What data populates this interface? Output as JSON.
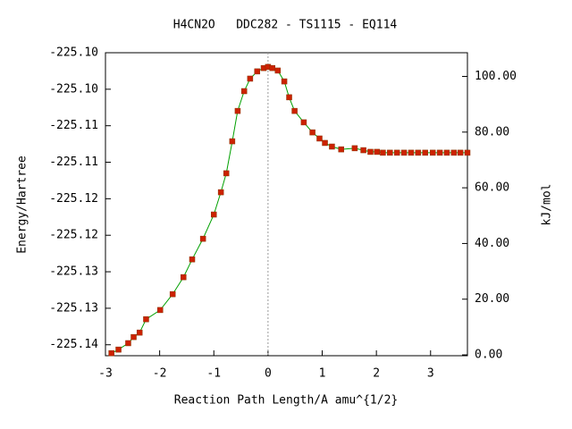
{
  "chart_data": {
    "type": "line",
    "title": "H4CN2O   DDC282 - TS1115 - EQ114",
    "xlabel": "Reaction Path Length/A amu^{1/2}",
    "ylabel": "Energy/Hartree",
    "y2label": "kJ/mol",
    "x": [
      -2.89,
      -2.76,
      -2.58,
      -2.48,
      -2.37,
      -2.25,
      -1.99,
      -1.76,
      -1.56,
      -1.4,
      -1.2,
      -1.0,
      -0.87,
      -0.77,
      -0.66,
      -0.56,
      -0.44,
      -0.33,
      -0.2,
      -0.08,
      0,
      0.08,
      0.18,
      0.3,
      0.39,
      0.49,
      0.66,
      0.82,
      0.95,
      1.05,
      1.18,
      1.35,
      1.6,
      1.76,
      1.89,
      2.01,
      2.12,
      2.25,
      2.38,
      2.51,
      2.64,
      2.77,
      2.9,
      3.04,
      3.17,
      3.3,
      3.43,
      3.55,
      3.68
    ],
    "values": [
      0.6,
      1.9,
      4.2,
      6.4,
      8.0,
      12.8,
      16.1,
      21.8,
      27.9,
      34.3,
      41.7,
      50.4,
      58.4,
      65.2,
      76.7,
      87.6,
      94.7,
      99.2,
      101.8,
      103.0,
      103.4,
      103.0,
      102.1,
      98.2,
      92.5,
      87.6,
      83.5,
      79.9,
      77.7,
      76.1,
      74.8,
      73.8,
      74.2,
      73.5,
      72.9,
      72.9,
      72.6,
      72.6,
      72.6,
      72.6,
      72.6,
      72.6,
      72.6,
      72.6,
      72.6,
      72.6,
      72.6,
      72.6,
      72.6
    ],
    "axis": "y2",
    "color": "#00a000",
    "marker_color": "#cc2200",
    "vline": 0,
    "xlim": [
      -3.0,
      3.68
    ],
    "xticks": [
      -3,
      -2,
      -1,
      0,
      1,
      2,
      3
    ],
    "ylim": [
      -225.1415,
      -225.1
    ],
    "yticks": [
      {
        "value": -225.1,
        "label": "-225.10"
      },
      {
        "value": -225.105,
        "label": "-225.10"
      },
      {
        "value": -225.11,
        "label": "-225.11"
      },
      {
        "value": -225.115,
        "label": "-225.11"
      },
      {
        "value": -225.12,
        "label": "-225.12"
      },
      {
        "value": -225.125,
        "label": "-225.12"
      },
      {
        "value": -225.13,
        "label": "-225.13"
      },
      {
        "value": -225.135,
        "label": "-225.13"
      },
      {
        "value": -225.14,
        "label": "-225.14"
      }
    ],
    "y2lim": [
      -0.3,
      108.5
    ],
    "y2ticks": [
      {
        "value": 0,
        "label": "0.00"
      },
      {
        "value": 20,
        "label": "20.00"
      },
      {
        "value": 40,
        "label": "40.00"
      },
      {
        "value": 60,
        "label": "60.00"
      },
      {
        "value": 80,
        "label": "80.00"
      },
      {
        "value": 100,
        "label": "100.00"
      }
    ]
  }
}
